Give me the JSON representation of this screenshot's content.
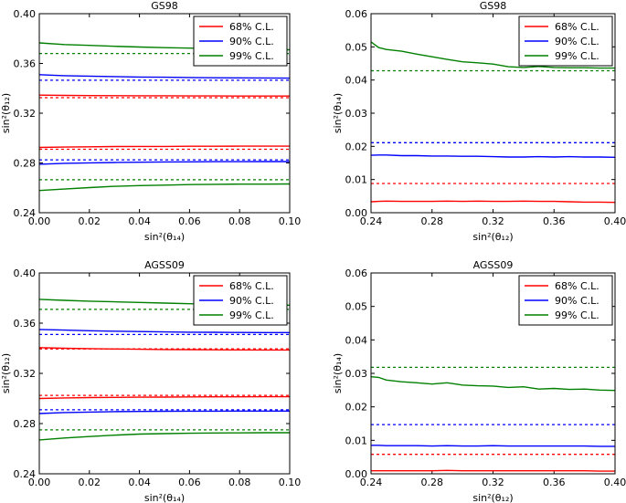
{
  "colors": {
    "red": "#ff0000",
    "blue": "#0000ff",
    "green": "#008000"
  },
  "chart_data": [
    {
      "type": "line",
      "title": "GS98",
      "xlabel": "sin²(θ₁₄)",
      "ylabel": "sin²(θ₁₂)",
      "xlim": [
        0.0,
        0.1
      ],
      "ylim": [
        0.24,
        0.4
      ],
      "xticks": [
        "0.00",
        "0.02",
        "0.04",
        "0.06",
        "0.08",
        "0.10"
      ],
      "yticks": [
        "0.24",
        "0.28",
        "0.32",
        "0.36",
        "0.40"
      ],
      "legend": [
        "68% C.L.",
        "90% C.L.",
        "99% C.L."
      ],
      "legend_position": "top-right",
      "x": [
        0.0,
        0.01,
        0.02,
        0.03,
        0.04,
        0.05,
        0.06,
        0.07,
        0.08,
        0.09,
        0.1
      ],
      "series": [
        {
          "name": "68% C.L.",
          "color_key": "red",
          "style": "solid",
          "values": [
            0.3345,
            0.3343,
            0.3342,
            0.3341,
            0.334,
            0.334,
            0.3339,
            0.3339,
            0.3338,
            0.3338,
            0.3338
          ]
        },
        {
          "name": "68% C.L.",
          "color_key": "red",
          "style": "solid",
          "values": [
            0.2925,
            0.2928,
            0.293,
            0.2932,
            0.2933,
            0.2933,
            0.2934,
            0.2934,
            0.2935,
            0.2935,
            0.2935
          ]
        },
        {
          "name": "90% C.L.",
          "color_key": "blue",
          "style": "solid",
          "values": [
            0.351,
            0.3502,
            0.3498,
            0.3494,
            0.3491,
            0.3489,
            0.3487,
            0.3485,
            0.3484,
            0.3483,
            0.3482
          ]
        },
        {
          "name": "90% C.L.",
          "color_key": "blue",
          "style": "solid",
          "values": [
            0.279,
            0.2797,
            0.2801,
            0.2804,
            0.2806,
            0.2808,
            0.2809,
            0.281,
            0.281,
            0.2811,
            0.2811
          ]
        },
        {
          "name": "99% C.L.",
          "color_key": "green",
          "style": "solid",
          "values": [
            0.3765,
            0.3752,
            0.3745,
            0.3738,
            0.3732,
            0.3727,
            0.3723,
            0.3719,
            0.3715,
            0.3712,
            0.371
          ]
        },
        {
          "name": "99% C.L.",
          "color_key": "green",
          "style": "solid",
          "values": [
            0.2578,
            0.259,
            0.2602,
            0.2612,
            0.2618,
            0.2622,
            0.2626,
            0.2628,
            0.263,
            0.263,
            0.2631
          ]
        },
        {
          "name": "68% C.L. (reference)",
          "color_key": "red",
          "style": "dashed",
          "values": [
            0.3325,
            0.3325,
            0.3325,
            0.3325,
            0.3325,
            0.3325,
            0.3325,
            0.3325,
            0.3325,
            0.3325,
            0.3325
          ]
        },
        {
          "name": "68% C.L. (reference)",
          "color_key": "red",
          "style": "dashed",
          "values": [
            0.291,
            0.291,
            0.291,
            0.291,
            0.291,
            0.291,
            0.291,
            0.291,
            0.291,
            0.291,
            0.291
          ]
        },
        {
          "name": "90% C.L. (reference)",
          "color_key": "blue",
          "style": "dashed",
          "values": [
            0.3465,
            0.3465,
            0.3465,
            0.3465,
            0.3465,
            0.3465,
            0.3465,
            0.3465,
            0.3465,
            0.3465,
            0.3465
          ]
        },
        {
          "name": "90% C.L. (reference)",
          "color_key": "blue",
          "style": "dashed",
          "values": [
            0.2825,
            0.2825,
            0.2825,
            0.2825,
            0.2825,
            0.2825,
            0.2825,
            0.2825,
            0.2825,
            0.2825,
            0.2825
          ]
        },
        {
          "name": "99% C.L. (reference)",
          "color_key": "green",
          "style": "dashed",
          "values": [
            0.368,
            0.368,
            0.368,
            0.368,
            0.368,
            0.368,
            0.368,
            0.368,
            0.368,
            0.368,
            0.368
          ]
        },
        {
          "name": "99% C.L. (reference)",
          "color_key": "green",
          "style": "dashed",
          "values": [
            0.2665,
            0.2665,
            0.2665,
            0.2665,
            0.2665,
            0.2665,
            0.2665,
            0.2665,
            0.2665,
            0.2665,
            0.2665
          ]
        }
      ]
    },
    {
      "type": "line",
      "title": "GS98",
      "xlabel": "sin²(θ₁₂)",
      "ylabel": "sin²(θ₁₄)",
      "xlim": [
        0.24,
        0.4
      ],
      "ylim": [
        0.0,
        0.06
      ],
      "xticks": [
        "0.24",
        "0.28",
        "0.32",
        "0.36",
        "0.40"
      ],
      "yticks": [
        "0.00",
        "0.01",
        "0.02",
        "0.03",
        "0.04",
        "0.05",
        "0.06"
      ],
      "legend": [
        "68% C.L.",
        "90% C.L.",
        "99% C.L."
      ],
      "legend_position": "top-right",
      "x": [
        0.24,
        0.245,
        0.25,
        0.26,
        0.27,
        0.28,
        0.29,
        0.3,
        0.31,
        0.32,
        0.33,
        0.34,
        0.35,
        0.36,
        0.37,
        0.38,
        0.39,
        0.4
      ],
      "series": [
        {
          "name": "68% C.L.",
          "color_key": "red",
          "style": "solid",
          "values": [
            0.0033,
            0.0034,
            0.0035,
            0.0034,
            0.0034,
            0.0034,
            0.0035,
            0.0034,
            0.0035,
            0.0034,
            0.0034,
            0.0035,
            0.0034,
            0.0034,
            0.0033,
            0.0032,
            0.0032,
            0.0031
          ]
        },
        {
          "name": "90% C.L.",
          "color_key": "blue",
          "style": "solid",
          "values": [
            0.0173,
            0.0174,
            0.0174,
            0.0172,
            0.0172,
            0.0171,
            0.0171,
            0.017,
            0.017,
            0.0169,
            0.0168,
            0.0168,
            0.0169,
            0.0168,
            0.0169,
            0.0168,
            0.0168,
            0.0167
          ]
        },
        {
          "name": "99% C.L.",
          "color_key": "green",
          "style": "solid",
          "values": [
            0.0515,
            0.0498,
            0.0492,
            0.0487,
            0.0478,
            0.047,
            0.0462,
            0.0455,
            0.0452,
            0.0448,
            0.044,
            0.0438,
            0.0441,
            0.0438,
            0.0437,
            0.0437,
            0.0436,
            0.0436
          ]
        },
        {
          "name": "68% C.L. (reference)",
          "color_key": "red",
          "style": "dashed",
          "values": [
            0.0088,
            0.0088,
            0.0088,
            0.0088,
            0.0088,
            0.0088,
            0.0088,
            0.0088,
            0.0088,
            0.0088,
            0.0088,
            0.0088,
            0.0088,
            0.0088,
            0.0088,
            0.0088,
            0.0088,
            0.0088
          ]
        },
        {
          "name": "90% C.L. (reference)",
          "color_key": "blue",
          "style": "dashed",
          "values": [
            0.0211,
            0.0211,
            0.0211,
            0.0211,
            0.0211,
            0.0211,
            0.0211,
            0.0211,
            0.0211,
            0.0211,
            0.0211,
            0.0211,
            0.0211,
            0.0211,
            0.0211,
            0.0211,
            0.0211,
            0.0211
          ]
        },
        {
          "name": "99% C.L. (reference)",
          "color_key": "green",
          "style": "dashed",
          "values": [
            0.0428,
            0.0428,
            0.0428,
            0.0428,
            0.0428,
            0.0428,
            0.0428,
            0.0428,
            0.0428,
            0.0428,
            0.0428,
            0.0428,
            0.0428,
            0.0428,
            0.0428,
            0.0428,
            0.0428,
            0.0428
          ]
        }
      ]
    },
    {
      "type": "line",
      "title": "AGSS09",
      "xlabel": "sin²(θ₁₄)",
      "ylabel": "sin²(θ₁₂)",
      "xlim": [
        0.0,
        0.1
      ],
      "ylim": [
        0.24,
        0.4
      ],
      "xticks": [
        "0.00",
        "0.02",
        "0.04",
        "0.06",
        "0.08",
        "0.10"
      ],
      "yticks": [
        "0.24",
        "0.28",
        "0.32",
        "0.36",
        "0.40"
      ],
      "legend": [
        "68% C.L.",
        "90% C.L.",
        "99% C.L."
      ],
      "legend_position": "top-right",
      "x": [
        0.0,
        0.01,
        0.02,
        0.03,
        0.04,
        0.05,
        0.06,
        0.07,
        0.08,
        0.09,
        0.1
      ],
      "series": [
        {
          "name": "68% C.L.",
          "color_key": "red",
          "style": "solid",
          "values": [
            0.3405,
            0.34,
            0.3397,
            0.3394,
            0.3392,
            0.339,
            0.3389,
            0.3388,
            0.3387,
            0.3386,
            0.3386
          ]
        },
        {
          "name": "68% C.L.",
          "color_key": "red",
          "style": "solid",
          "values": [
            0.3,
            0.3004,
            0.3007,
            0.3009,
            0.301,
            0.3011,
            0.3012,
            0.3013,
            0.3013,
            0.3014,
            0.3014
          ]
        },
        {
          "name": "90% C.L.",
          "color_key": "blue",
          "style": "solid",
          "values": [
            0.355,
            0.3545,
            0.354,
            0.3536,
            0.3533,
            0.353,
            0.3528,
            0.3527,
            0.3526,
            0.3525,
            0.3525
          ]
        },
        {
          "name": "90% C.L.",
          "color_key": "blue",
          "style": "solid",
          "values": [
            0.288,
            0.2888,
            0.2892,
            0.2895,
            0.2897,
            0.2898,
            0.2899,
            0.2899,
            0.29,
            0.29,
            0.29
          ]
        },
        {
          "name": "99% C.L.",
          "color_key": "green",
          "style": "solid",
          "values": [
            0.379,
            0.3782,
            0.3775,
            0.377,
            0.3765,
            0.376,
            0.3755,
            0.3751,
            0.3748,
            0.3745,
            0.3743
          ]
        },
        {
          "name": "99% C.L.",
          "color_key": "green",
          "style": "solid",
          "values": [
            0.267,
            0.2685,
            0.2697,
            0.2708,
            0.2716,
            0.272,
            0.2723,
            0.2725,
            0.2726,
            0.2727,
            0.2727
          ]
        },
        {
          "name": "68% C.L. (reference)",
          "color_key": "red",
          "style": "dashed",
          "values": [
            0.3395,
            0.3395,
            0.3395,
            0.3395,
            0.3395,
            0.3395,
            0.3395,
            0.3395,
            0.3395,
            0.3395,
            0.3395
          ]
        },
        {
          "name": "68% C.L. (reference)",
          "color_key": "red",
          "style": "dashed",
          "values": [
            0.3025,
            0.3025,
            0.3025,
            0.3025,
            0.3025,
            0.3025,
            0.3025,
            0.3025,
            0.3025,
            0.3025,
            0.3025
          ]
        },
        {
          "name": "90% C.L. (reference)",
          "color_key": "blue",
          "style": "dashed",
          "values": [
            0.351,
            0.351,
            0.351,
            0.351,
            0.351,
            0.351,
            0.351,
            0.351,
            0.351,
            0.351,
            0.351
          ]
        },
        {
          "name": "90% C.L. (reference)",
          "color_key": "blue",
          "style": "dashed",
          "values": [
            0.291,
            0.291,
            0.291,
            0.291,
            0.291,
            0.291,
            0.291,
            0.291,
            0.291,
            0.291,
            0.291
          ]
        },
        {
          "name": "99% C.L. (reference)",
          "color_key": "green",
          "style": "dashed",
          "values": [
            0.371,
            0.371,
            0.371,
            0.371,
            0.371,
            0.371,
            0.371,
            0.371,
            0.371,
            0.371,
            0.371
          ]
        },
        {
          "name": "99% C.L. (reference)",
          "color_key": "green",
          "style": "dashed",
          "values": [
            0.275,
            0.275,
            0.275,
            0.275,
            0.275,
            0.275,
            0.275,
            0.275,
            0.275,
            0.275,
            0.275
          ]
        }
      ]
    },
    {
      "type": "line",
      "title": "AGSS09",
      "xlabel": "sin²(θ₁₂)",
      "ylabel": "sin²(θ₁₄)",
      "xlim": [
        0.24,
        0.4
      ],
      "ylim": [
        0.0,
        0.06
      ],
      "xticks": [
        "0.24",
        "0.28",
        "0.32",
        "0.36",
        "0.40"
      ],
      "yticks": [
        "0.00",
        "0.01",
        "0.02",
        "0.03",
        "0.04",
        "0.05",
        "0.06"
      ],
      "legend": [
        "68% C.L.",
        "90% C.L.",
        "99% C.L."
      ],
      "legend_position": "top-right",
      "x": [
        0.24,
        0.245,
        0.25,
        0.26,
        0.27,
        0.28,
        0.29,
        0.3,
        0.31,
        0.32,
        0.33,
        0.34,
        0.35,
        0.36,
        0.37,
        0.38,
        0.39,
        0.4
      ],
      "series": [
        {
          "name": "68% C.L.",
          "color_key": "red",
          "style": "solid",
          "values": [
            0.0009,
            0.0009,
            0.0009,
            0.0009,
            0.0009,
            0.0009,
            0.001,
            0.0009,
            0.0009,
            0.0009,
            0.0009,
            0.0009,
            0.0009,
            0.0009,
            0.0009,
            0.0009,
            0.0008,
            0.0008
          ]
        },
        {
          "name": "90% C.L.",
          "color_key": "blue",
          "style": "solid",
          "values": [
            0.0085,
            0.0085,
            0.0084,
            0.0084,
            0.0084,
            0.0083,
            0.0084,
            0.0083,
            0.0083,
            0.0084,
            0.0083,
            0.0083,
            0.0083,
            0.0083,
            0.0083,
            0.0083,
            0.0082,
            0.0082
          ]
        },
        {
          "name": "99% C.L.",
          "color_key": "green",
          "style": "solid",
          "values": [
            0.029,
            0.0288,
            0.028,
            0.0275,
            0.0272,
            0.0268,
            0.0272,
            0.0265,
            0.0263,
            0.0262,
            0.0258,
            0.026,
            0.0253,
            0.0255,
            0.0252,
            0.0253,
            0.025,
            0.0249
          ]
        },
        {
          "name": "68% C.L. (reference)",
          "color_key": "red",
          "style": "dashed",
          "values": [
            0.0058,
            0.0058,
            0.0058,
            0.0058,
            0.0058,
            0.0058,
            0.0058,
            0.0058,
            0.0058,
            0.0058,
            0.0058,
            0.0058,
            0.0058,
            0.0058,
            0.0058,
            0.0058,
            0.0058,
            0.0058
          ]
        },
        {
          "name": "90% C.L. (reference)",
          "color_key": "blue",
          "style": "dashed",
          "values": [
            0.0147,
            0.0147,
            0.0147,
            0.0147,
            0.0147,
            0.0147,
            0.0147,
            0.0147,
            0.0147,
            0.0147,
            0.0147,
            0.0147,
            0.0147,
            0.0147,
            0.0147,
            0.0147,
            0.0147,
            0.0147
          ]
        },
        {
          "name": "99% C.L. (reference)",
          "color_key": "green",
          "style": "dashed",
          "values": [
            0.0318,
            0.0318,
            0.0318,
            0.0318,
            0.0318,
            0.0318,
            0.0318,
            0.0318,
            0.0318,
            0.0318,
            0.0318,
            0.0318,
            0.0318,
            0.0318,
            0.0318,
            0.0318,
            0.0318,
            0.0318
          ]
        }
      ]
    }
  ]
}
